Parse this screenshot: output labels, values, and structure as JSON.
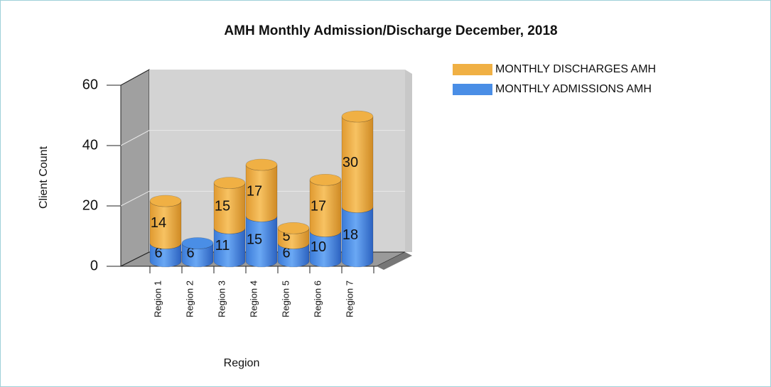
{
  "chart_data": {
    "type": "bar3d_stacked",
    "title": "AMH Monthly Admission/Discharge December, 2018",
    "x_label": "Region",
    "y_label": "Client Count",
    "categories": [
      "Region 1",
      "Region 2",
      "Region 3",
      "Region 4",
      "Region 5",
      "Region 6",
      "Region 7"
    ],
    "series": [
      {
        "name": "MONTHLY ADMISSIONS AMH",
        "color": "#4a8ee6",
        "values": [
          6,
          6,
          11,
          15,
          6,
          10,
          18
        ]
      },
      {
        "name": "MONTHLY DISCHARGES AMH",
        "color": "#f0b044",
        "values": [
          14,
          null,
          15,
          17,
          5,
          17,
          30
        ]
      }
    ],
    "ylim": [
      0,
      60
    ],
    "yticks": [
      0,
      20,
      40,
      60
    ],
    "grid": true,
    "legend": "top-right"
  }
}
